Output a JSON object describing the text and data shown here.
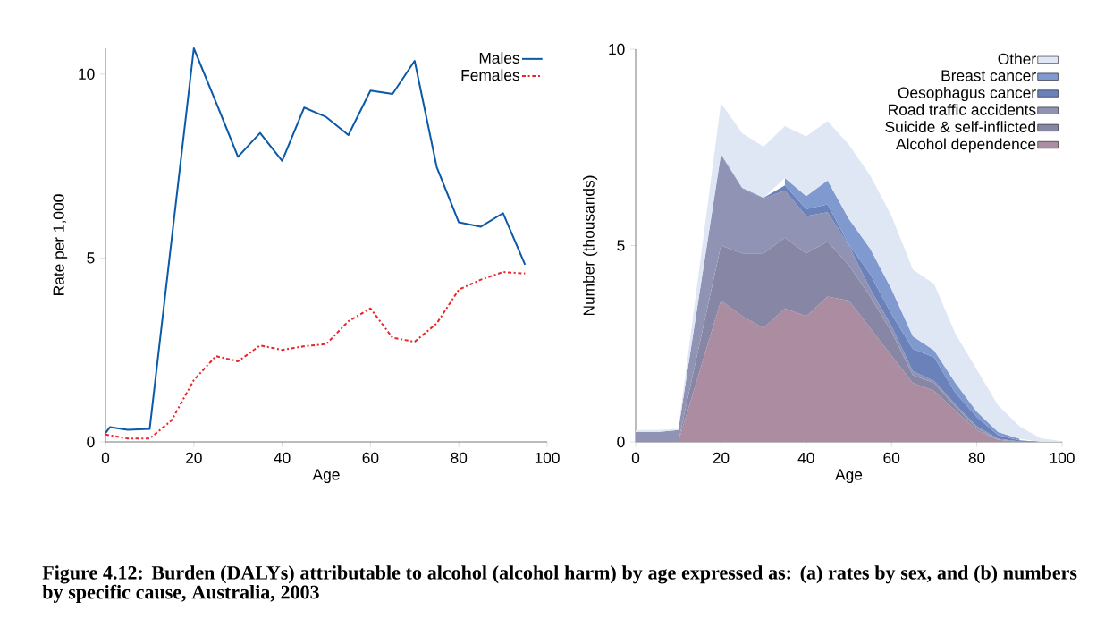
{
  "chart_data": [
    {
      "type": "line",
      "xlabel": "Age",
      "ylabel": "Rate per 1,000",
      "xlim": [
        0,
        100
      ],
      "ylim": [
        0,
        10.7
      ],
      "xticks": [
        0,
        20,
        40,
        60,
        80,
        100
      ],
      "yticks": [
        0,
        5,
        10
      ],
      "legend": "top right",
      "annotations": [
        "Figure 4.12: Burden (DALYs) attributable to alcohol (alcohol harm) by age expressed as: (a) rates by sex, and (b) numbers by specific cause, Australia, 2003"
      ],
      "series": [
        {
          "name": "Males",
          "color": "#0a5aa8",
          "line_style": "solid",
          "x": [
            0,
            1,
            5,
            10,
            20,
            25,
            30,
            35,
            40,
            45,
            50,
            55,
            60,
            65,
            70,
            75,
            80,
            85,
            90,
            95
          ],
          "values": [
            0.24,
            0.4,
            0.33,
            0.35,
            10.7,
            9.24,
            7.75,
            8.4,
            7.64,
            9.09,
            8.83,
            8.34,
            9.55,
            9.46,
            10.36,
            7.47,
            5.97,
            5.85,
            6.22,
            4.82
          ]
        },
        {
          "name": "Females",
          "color": "#e8262a",
          "line_style": "dashdot",
          "x": [
            0,
            5,
            10,
            15,
            20,
            25,
            30,
            35,
            40,
            45,
            50,
            55,
            60,
            65,
            70,
            75,
            80,
            85,
            90,
            95
          ],
          "values": [
            0.2,
            0.09,
            0.09,
            0.59,
            1.68,
            2.33,
            2.19,
            2.62,
            2.5,
            2.6,
            2.66,
            3.28,
            3.63,
            2.83,
            2.72,
            3.22,
            4.14,
            4.41,
            4.62,
            4.58
          ]
        }
      ]
    },
    {
      "type": "area",
      "stacked": true,
      "xlabel": "Age",
      "ylabel": "Number (thousands)",
      "xlim": [
        0,
        100
      ],
      "ylim": [
        0,
        10
      ],
      "xticks": [
        0,
        20,
        40,
        60,
        80,
        100
      ],
      "yticks": [
        0,
        5,
        10
      ],
      "legend": "top right",
      "x": [
        0,
        5,
        10,
        20,
        25,
        30,
        35,
        40,
        45,
        50,
        55,
        60,
        65,
        70,
        75,
        80,
        85,
        90,
        95,
        100
      ],
      "series": [
        {
          "name": "Alcohol dependence",
          "color": "#ab8ca0",
          "values": [
            0,
            0,
            0,
            3.6,
            3.2,
            2.9,
            3.4,
            3.2,
            3.7,
            3.6,
            2.9,
            2.2,
            1.5,
            1.3,
            0.8,
            0.3,
            0.05,
            0,
            0,
            0
          ]
        },
        {
          "name": "Suicide & self-inflicted",
          "color": "#8787a5",
          "values": [
            0,
            0,
            0,
            1.4,
            1.6,
            1.9,
            1.8,
            1.6,
            1.4,
            0.9,
            0.8,
            0.6,
            0.2,
            0.2,
            0.1,
            0.05,
            0.01,
            0,
            0,
            0
          ]
        },
        {
          "name": "Road traffic accidents",
          "color": "#9093b3",
          "values": [
            0.25,
            0.25,
            0.3,
            2.3,
            1.65,
            1.4,
            1.2,
            0.95,
            0.75,
            0.5,
            0.2,
            0.15,
            0.1,
            0.05,
            0.05,
            0.05,
            0.02,
            0.01,
            0,
            0
          ]
        },
        {
          "name": "Oesophagus cancer",
          "color": "#6a82b9",
          "values": [
            0,
            0,
            0,
            0.03,
            0.02,
            0.02,
            0.13,
            0.18,
            0.2,
            0.03,
            0.37,
            0.3,
            0.57,
            0.6,
            0.29,
            0.23,
            0.09,
            0.03,
            0,
            0
          ]
        },
        {
          "name": "Breast cancer",
          "color": "#8099cf",
          "values": [
            null,
            null,
            null,
            null,
            null,
            null,
            0.19,
            0.33,
            0.61,
            0.65,
            0.65,
            0.64,
            0.32,
            0.18,
            0.26,
            0.14,
            0.08,
            0.04,
            null,
            null
          ]
        },
        {
          "name": "Other",
          "color": "#dfe6f4",
          "values": [
            0.05,
            0.05,
            0.03,
            1.3,
            1.39,
            1.3,
            1.32,
            1.52,
            1.51,
            1.89,
            1.86,
            1.86,
            1.7,
            1.69,
            1.25,
            1.07,
            0.68,
            0.32,
            0.09,
            0.02
          ]
        }
      ]
    }
  ]
}
